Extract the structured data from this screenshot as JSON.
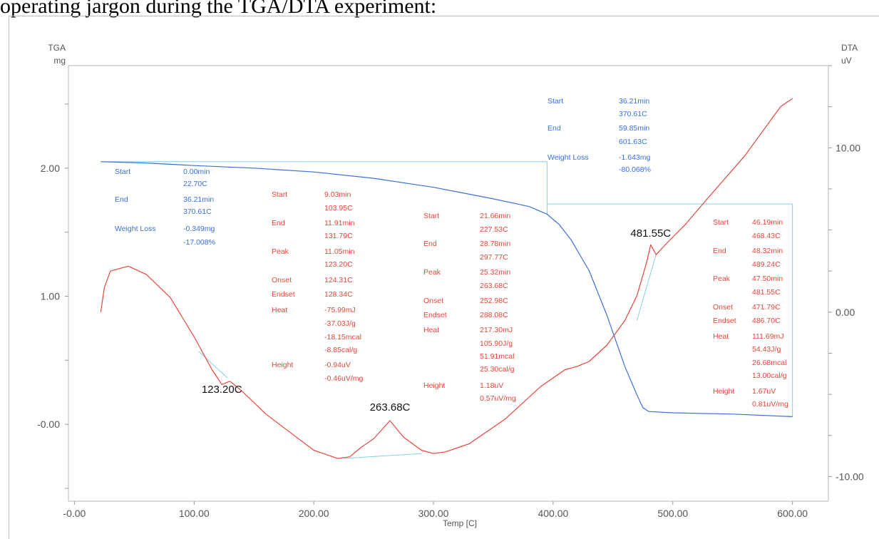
{
  "caption": "operating jargon during the TGA/DTA experiment:",
  "colors": {
    "tga": "#3a6fdc",
    "dta": "#e8463a",
    "baseline": "#7fd3e6",
    "ann_blue": "#3a6fdc",
    "ann_red": "#e8463a"
  },
  "chart_data": {
    "type": "line",
    "title": "",
    "xlabel": "Temp [C]",
    "x_ticks": [
      "-0.00",
      "100.00",
      "200.00",
      "300.00",
      "400.00",
      "500.00",
      "600.00"
    ],
    "xlim": [
      -5,
      630
    ],
    "y_left": {
      "label_line1": "TGA",
      "label_line2": "mg",
      "ticks": [
        "2.00",
        "1.00",
        "-0.00"
      ],
      "ylim": [
        -0.6,
        2.8
      ]
    },
    "y_right": {
      "label_line1": "DTA",
      "label_line2": "uV",
      "ticks": [
        "10.00",
        "0.00",
        "-10.00"
      ],
      "ylim": [
        -11.5,
        15
      ]
    },
    "series": [
      {
        "axis": "left",
        "x": [
          22,
          60,
          100,
          150,
          200,
          250,
          300,
          350,
          380,
          395,
          405,
          415,
          430,
          445,
          460,
          470,
          475,
          480,
          500,
          550,
          600
        ],
        "y": [
          2.05,
          2.04,
          2.02,
          2.0,
          1.97,
          1.92,
          1.85,
          1.76,
          1.7,
          1.64,
          1.56,
          1.44,
          1.2,
          0.85,
          0.45,
          0.23,
          0.13,
          0.1,
          0.09,
          0.08,
          0.06
        ]
      },
      {
        "axis": "right",
        "x": [
          22,
          25,
          30,
          45,
          60,
          80,
          100,
          115,
          123.2,
          130,
          140,
          160,
          180,
          200,
          220,
          230,
          240,
          250,
          263.68,
          275,
          290,
          300,
          310,
          330,
          360,
          390,
          410,
          420,
          430,
          445,
          460,
          470,
          478,
          481.55,
          486,
          495,
          510,
          530,
          560,
          590,
          600
        ],
        "y": [
          0.0,
          1.5,
          2.5,
          2.8,
          2.3,
          0.9,
          -1.5,
          -3.5,
          -4.4,
          -4.2,
          -4.8,
          -6.2,
          -7.3,
          -8.4,
          -8.9,
          -8.8,
          -8.2,
          -7.7,
          -6.6,
          -7.6,
          -8.4,
          -8.6,
          -8.5,
          -8.0,
          -6.5,
          -4.5,
          -3.5,
          -3.3,
          -3.0,
          -2.0,
          -0.5,
          1.0,
          3.0,
          4.1,
          3.5,
          4.2,
          5.3,
          7.0,
          9.5,
          12.5,
          13.0
        ]
      }
    ],
    "baselines": [
      {
        "x": [
          22,
          395
        ],
        "y": [
          2.05,
          2.05
        ],
        "axis": "left"
      },
      {
        "x": [
          395,
          395
        ],
        "y": [
          2.05,
          1.64
        ],
        "axis": "left"
      },
      {
        "x": [
          395,
          600
        ],
        "y": [
          1.72,
          1.72
        ],
        "axis": "left"
      },
      {
        "x": [
          600,
          600
        ],
        "y": [
          1.72,
          0.06
        ],
        "axis": "left"
      },
      {
        "x": [
          104,
          128
        ],
        "y": [
          -2.4,
          -4.0
        ],
        "axis": "right"
      },
      {
        "x": [
          225,
          290
        ],
        "y": [
          -8.9,
          -8.6
        ],
        "axis": "right"
      },
      {
        "x": [
          470,
          486
        ],
        "y": [
          -0.5,
          3.5
        ],
        "axis": "right"
      }
    ],
    "peak_labels": [
      {
        "text": "123.20C",
        "x": 123.2,
        "y": -4.9,
        "axis": "right"
      },
      {
        "text": "263.68C",
        "x": 263.68,
        "y": -6.0,
        "axis": "right"
      },
      {
        "text": "481.55C",
        "x": 481.55,
        "y": 4.6,
        "axis": "right"
      }
    ],
    "annotations": {
      "tga1": {
        "keys": [
          "Start",
          "",
          "End",
          "",
          "Weight Loss",
          ""
        ],
        "vals": [
          "0.00min",
          "22.70C",
          "36.21min",
          "370.61C",
          "-0.349mg",
          "-17.008%"
        ]
      },
      "tga2": {
        "keys": [
          "Start",
          "",
          "End",
          "",
          "Weight Loss",
          ""
        ],
        "vals": [
          "36.21min",
          "370.61C",
          "59.85min",
          "601.63C",
          "-1.643mg",
          "-80.068%"
        ]
      },
      "dta1": {
        "keys": [
          "Start",
          "",
          "End",
          "",
          "Peak",
          "",
          "Onset",
          "Endset",
          "Heat",
          "",
          "",
          "",
          "Height",
          ""
        ],
        "vals": [
          "9.03min",
          "103.95C",
          "11.91min",
          "131.79C",
          "11.05min",
          "123.20C",
          "124.31C",
          "128.34C",
          "-75.99mJ",
          "-37.03J/g",
          "-18.15mcal",
          "-8.85cal/g",
          "-0.94uV",
          "-0.46uV/mg"
        ]
      },
      "dta2": {
        "keys": [
          "Start",
          "",
          "End",
          "",
          "Peak",
          "",
          "Onset",
          "Endset",
          "Heat",
          "",
          "",
          "",
          "Height",
          ""
        ],
        "vals": [
          "21.66min",
          "227.53C",
          "28.78min",
          "297.77C",
          "25.32min",
          "263.68C",
          "252.98C",
          "288.08C",
          "217.30mJ",
          "105.90J/g",
          "51.91mcal",
          "25.30cal/g",
          "1.18uV",
          "0.57uV/mg"
        ]
      },
      "dta3": {
        "keys": [
          "Start",
          "",
          "End",
          "",
          "Peak",
          "",
          "Onset",
          "Endset",
          "Heat",
          "",
          "",
          "",
          "Height",
          ""
        ],
        "vals": [
          "46.19min",
          "468.43C",
          "48.32min",
          "489.24C",
          "47.50min",
          "481.55C",
          "471.79C",
          "486.70C",
          "111.69mJ",
          "54.43J/g",
          "26.68mcal",
          "13.00cal/g",
          "1.67uV",
          "0.81uV/mg"
        ]
      }
    }
  }
}
